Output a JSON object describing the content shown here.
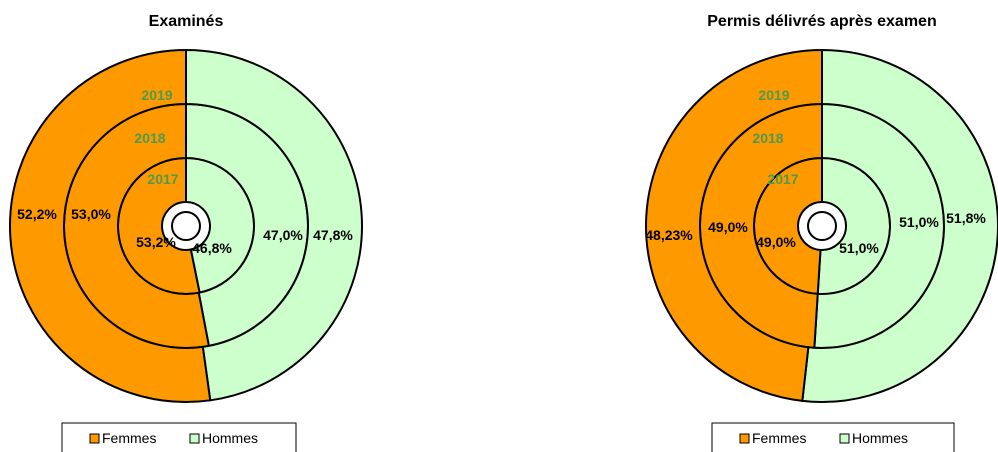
{
  "chart_data": [
    {
      "type": "pie",
      "subtype": "doughnut",
      "title": "Examinés",
      "categories": [
        "Femmes",
        "Hommes"
      ],
      "rings": [
        {
          "name": "2017",
          "values": [
            53.2,
            46.8
          ],
          "labels": [
            "53,2%",
            "46,8%"
          ]
        },
        {
          "name": "2018",
          "values": [
            53.0,
            47.0
          ],
          "labels": [
            "53,0%",
            "47,0%"
          ]
        },
        {
          "name": "2019",
          "values": [
            52.2,
            47.8
          ],
          "labels": [
            "52,2%",
            "47,8%"
          ]
        }
      ],
      "legend": {
        "placement": "bottom",
        "entries": [
          "Femmes",
          "Hommes"
        ]
      }
    },
    {
      "type": "pie",
      "subtype": "doughnut",
      "title": "Permis délivrés après examen",
      "categories": [
        "Femmes",
        "Hommes"
      ],
      "rings": [
        {
          "name": "2017",
          "values": [
            49.0,
            51.0
          ],
          "labels": [
            "49,0%",
            "51,0%"
          ]
        },
        {
          "name": "2018",
          "values": [
            49.0,
            51.0
          ],
          "labels": [
            "49,0%",
            "51,0%"
          ]
        },
        {
          "name": "2019",
          "values": [
            48.23,
            51.8
          ],
          "labels": [
            "48,23%",
            "51,8%"
          ]
        }
      ],
      "legend": {
        "placement": "bottom",
        "entries": [
          "Femmes",
          "Hommes"
        ]
      }
    }
  ],
  "colors": {
    "Femmes": "#FF9900",
    "Hommes": "#CCFFCC",
    "year_label": "#4E9A4E",
    "outline": "#000000"
  }
}
